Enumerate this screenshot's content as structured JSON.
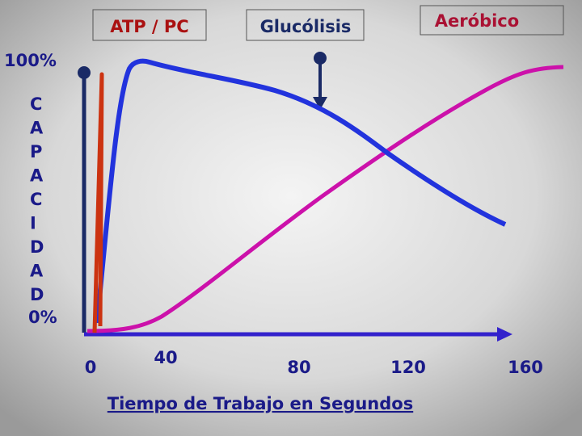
{
  "header": {
    "boxes": [
      "ATP / PC",
      "Glucólisis",
      "Aeróbico"
    ]
  },
  "y_axis": {
    "top": "100%",
    "letters": [
      "C",
      "A",
      "P",
      "A",
      "C",
      "I",
      "D",
      "A",
      "D"
    ],
    "bottom": "0%"
  },
  "x_axis": {
    "ticks": [
      "0",
      "40",
      "80",
      "120",
      "160"
    ],
    "title": "Tiempo de Trabajo en Segundos"
  }
}
